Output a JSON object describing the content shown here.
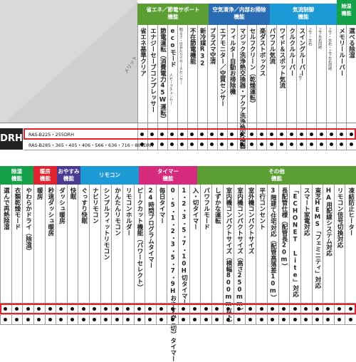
{
  "top": {
    "merit_label": "メリット",
    "series_label": "DRH",
    "groups": [
      {
        "label": "省エネ／節電サポート\n機能",
        "color": "#5a9e34"
      },
      {
        "label": "空気清浄／内部お掃除\n機能",
        "color": "#2a6cb3"
      },
      {
        "label": "気流制御\n機能",
        "color": "#1c9ad6"
      },
      {
        "label": "除湿\n機能",
        "color": "#15a04a"
      }
    ],
    "columns": [
      {
        "label": "省エネ基準クリア",
        "sub": ""
      },
      {
        "label": "エナジーセーブコンプレッサー",
        "sub": ""
      },
      {
        "label": "節電運転（消費電力45W運転）",
        "sub": ""
      },
      {
        "label": "ecoモード",
        "sub": "人セーブチェンサー"
      },
      {
        "label": "",
        "sub": "明るさ・日あたりでサーチセンサー"
      },
      {
        "label": "不在節電機能",
        "sub": ""
      },
      {
        "label": "新冷媒R32",
        "sub": ""
      },
      {
        "label": "プラズマ空清",
        "sub": ""
      },
      {
        "label": "エアモニター／空質センサー",
        "sub": ""
      },
      {
        "label": "フィルター自動お掃除機",
        "sub": ""
      },
      {
        "label": "マジック洗浄熱交換器・アクア洗浄熱交換器",
        "sub": ""
      },
      {
        "label": "セルフクリーン（乾燥運転）",
        "sub": ""
      },
      {
        "label": "楽ダストボックス",
        "sub": ""
      },
      {
        "label": "パワフル気流",
        "sub": ""
      },
      {
        "label": "ワイド＆スポット気流",
        "sub": ""
      },
      {
        "label": "クルクルルーバー",
        "sub": ""
      },
      {
        "label": "スイングルーバー",
        "sub": "上下"
      },
      {
        "label": "",
        "sub": "上下・左右"
      },
      {
        "label": "",
        "sub": "上下左右同時"
      },
      {
        "label": "",
        "sub": "上下・左右・上下左右同時"
      },
      {
        "label": "メモリールーバー",
        "sub": ""
      },
      {
        "label": "選べる除湿",
        "sub": ""
      }
    ],
    "rows": [
      {
        "model": "RAS-B225・255DRH"
      },
      {
        "model": "RAS-B285・365・405・406・566・636・716・806DRH"
      }
    ]
  },
  "bottom": {
    "groups": [
      {
        "label": "除湿\n機能",
        "color": "#15a04a"
      },
      {
        "label": "暖房\n機能",
        "color": "#e0232e"
      },
      {
        "label": "おやすみ\n機能",
        "color": "#4a3a92"
      },
      {
        "label": "リモコン",
        "color": "#1c9ad6"
      },
      {
        "label": "タイマー\n機能",
        "color": "#d62a7c"
      },
      {
        "label": "その他\n機能",
        "color": "#5a9e34"
      }
    ],
    "columns": [
      "選んで再熱除湿",
      "衣類乾燥モード",
      "やわらかドライ（除湿）",
      "暖房",
      "秒速ダッシュ暖房",
      "ダッシュ暖房",
      "快眠",
      "ぐっすり快眠",
      "ナビリモコン",
      "シンプルフィットリモコン",
      "かんたんリモコン",
      "リモコンホルダー",
      "ピークカット機能（パワーセレクト）",
      "24時間プログラムタイマー",
      "毎日タイマー",
      "0.5・1・2・3・5・7・9Hおやすみ（切）タイマー",
      "1・2・3・5・7・10H切タイマー",
      "入・切タイマー",
      "パワフルモード",
      "しずかな運転",
      "室内機コンパクトサイズ（横幅800mm以下）",
      "室内機コンパクトサイズ（高さ250mm）",
      "室外機コンパクトサイズ",
      "平行コンセント",
      "3階建て住宅対応（配管高落差10m）",
      "長配管仕様（配管長20m）",
      "「ECHONET Lite」対応",
      "スマート家電対応",
      "東芝HEMS「フェミニティ」対応",
      "HA用配線システム対応",
      "リモコン信号切換対応",
      "凍結防止ヒーター"
    ]
  }
}
